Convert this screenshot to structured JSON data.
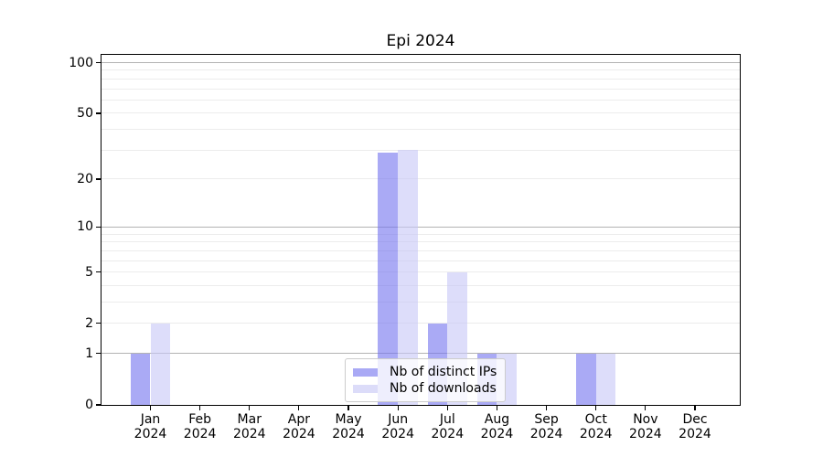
{
  "chart_data": {
    "type": "bar",
    "title": "Epi 2024",
    "categories": [
      "Jan",
      "Feb",
      "Mar",
      "Apr",
      "May",
      "Jun",
      "Jul",
      "Aug",
      "Sep",
      "Oct",
      "Nov",
      "Dec"
    ],
    "x_year_label": "2024",
    "series": [
      {
        "name": "Nb of distinct IPs",
        "color": "rgba(113,113,238,0.6)",
        "legend_swatch_color": "#a9a9f5",
        "values": [
          1,
          0,
          0,
          0,
          0,
          29,
          2,
          1,
          0,
          1,
          0,
          0
        ]
      },
      {
        "name": "Nb of downloads",
        "color": "rgba(198,198,247,0.6)",
        "legend_swatch_color": "#dcdcf9",
        "values": [
          2,
          0,
          0,
          0,
          0,
          30,
          5,
          1,
          0,
          1,
          0,
          0
        ]
      }
    ],
    "y_axis": {
      "scale": "log10(1+y)",
      "ticks": [
        0,
        1,
        2,
        5,
        10,
        20,
        50,
        100
      ],
      "minor_gridlines": [
        3,
        4,
        6,
        7,
        8,
        9,
        30,
        40,
        60,
        70,
        80,
        90
      ],
      "power_of_ten_gridlines": [
        1,
        10,
        100
      ],
      "ylim_top": 115
    },
    "legend_position": "lower center",
    "grid": true
  },
  "colors": {
    "grid_minor": "#ececec",
    "grid_power10": "#b3b3b3",
    "axis": "#000000",
    "text": "#000000",
    "background": "#ffffff"
  }
}
